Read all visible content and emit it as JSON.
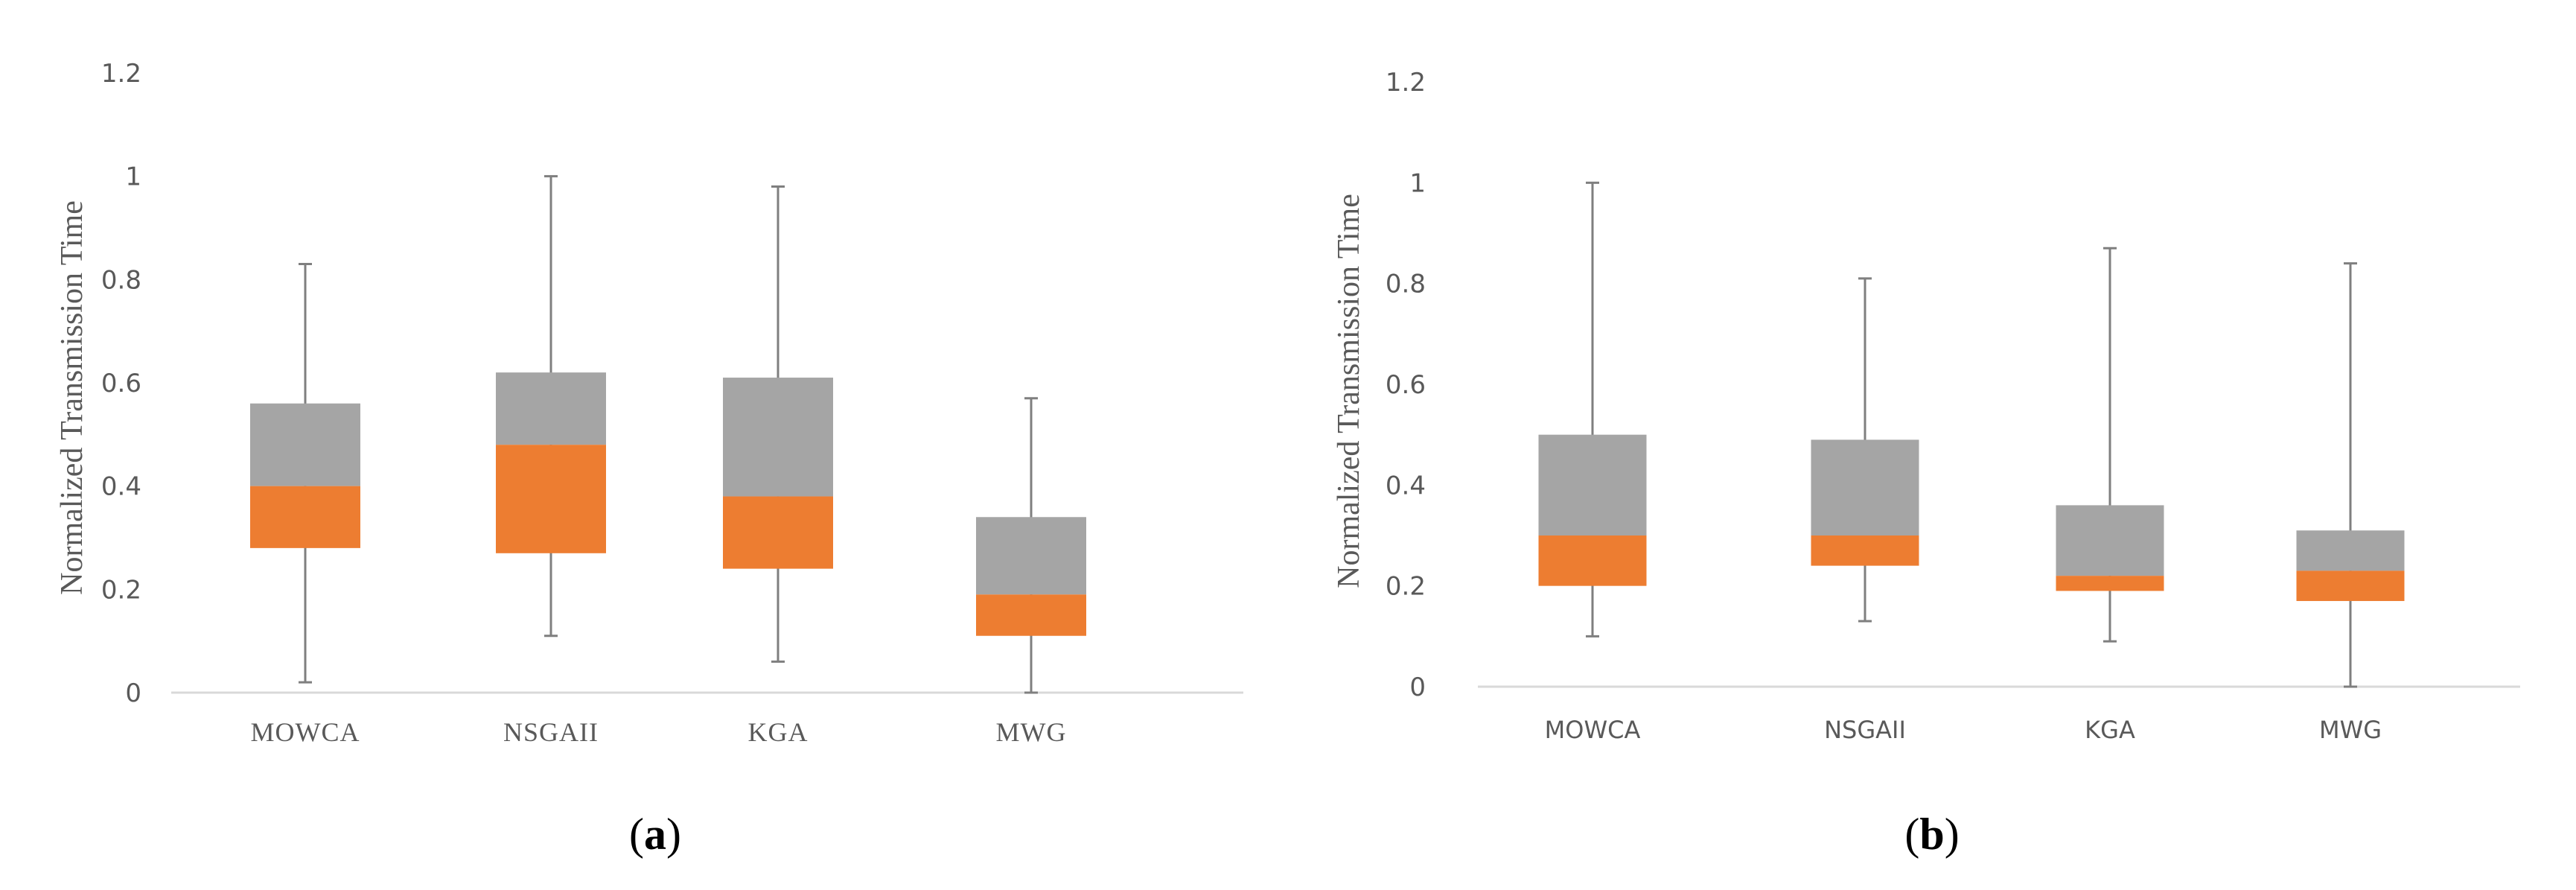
{
  "colors": {
    "upper_box": "#a5a5a5",
    "lower_box": "#ed7d31",
    "whisker": "#7f7f7f",
    "axis": "#d9d9d9",
    "text": "#595959"
  },
  "chart_data": [
    {
      "type": "boxplot",
      "panel_label": "a",
      "title": "",
      "xlabel": "",
      "ylabel": "Normalized Transmission Time",
      "ylim": [
        0,
        1.2
      ],
      "yticks": [
        "0",
        "0.2",
        "0.4",
        "0.6",
        "0.8",
        "1",
        "1.2"
      ],
      "categories": [
        "MOWCA",
        "NSGAII",
        "KGA",
        "MWG"
      ],
      "boxes": [
        {
          "min": 0.02,
          "q1": 0.28,
          "median": 0.4,
          "q3": 0.56,
          "max": 0.83
        },
        {
          "min": 0.11,
          "q1": 0.27,
          "median": 0.48,
          "q3": 0.62,
          "max": 1.0
        },
        {
          "min": 0.06,
          "q1": 0.24,
          "median": 0.38,
          "q3": 0.61,
          "max": 0.98
        },
        {
          "min": 0.0,
          "q1": 0.11,
          "median": 0.19,
          "q3": 0.34,
          "max": 0.57
        }
      ]
    },
    {
      "type": "boxplot",
      "panel_label": "b",
      "title": "",
      "xlabel": "",
      "ylabel": "Normalized Transmission Time",
      "ylim": [
        0,
        1.2
      ],
      "yticks": [
        "0",
        "0.2",
        "0.4",
        "0.6",
        "0.8",
        "1",
        "1.2"
      ],
      "categories": [
        "MOWCA",
        "NSGAII",
        "KGA",
        "MWG"
      ],
      "boxes": [
        {
          "min": 0.1,
          "q1": 0.2,
          "median": 0.3,
          "q3": 0.5,
          "max": 1.0
        },
        {
          "min": 0.13,
          "q1": 0.24,
          "median": 0.3,
          "q3": 0.49,
          "max": 0.81
        },
        {
          "min": 0.09,
          "q1": 0.19,
          "median": 0.22,
          "q3": 0.36,
          "max": 0.87
        },
        {
          "min": 0.0,
          "q1": 0.17,
          "median": 0.23,
          "q3": 0.31,
          "max": 0.84
        }
      ]
    }
  ]
}
